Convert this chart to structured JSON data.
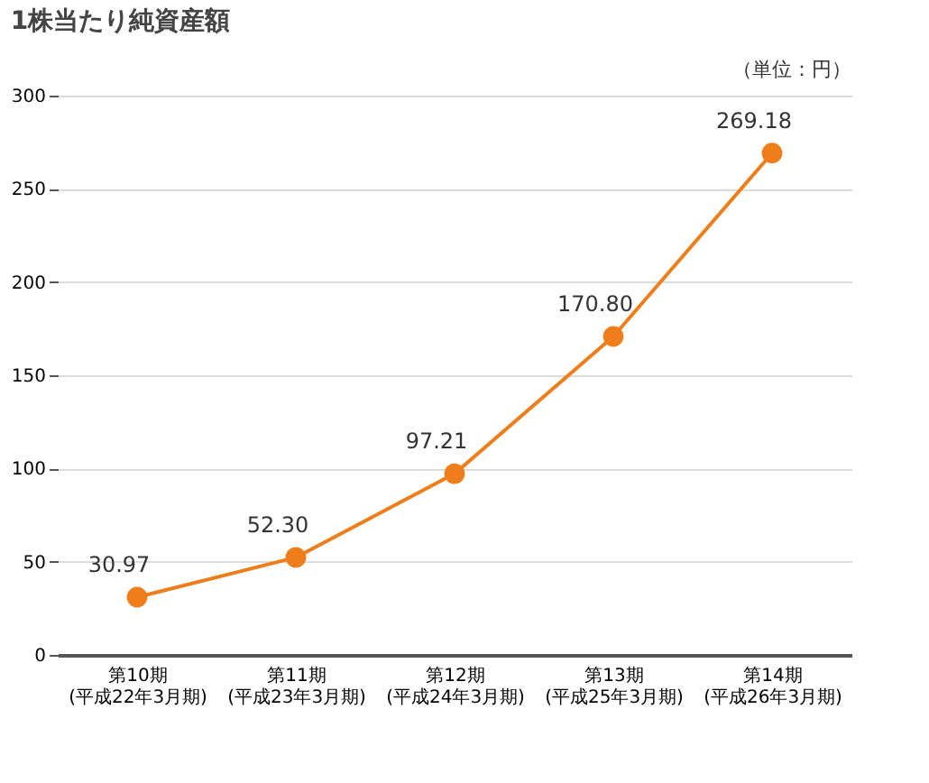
{
  "chart_data": {
    "type": "line",
    "title": "1株当たり純資産額",
    "categories": [
      "第10期\n(平成22年3月期)",
      "第11期\n(平成23年3月期)",
      "第12期\n(平成24年3月期)",
      "第13期\n(平成25年3月期)",
      "第14期\n(平成26年3月期)"
    ],
    "series": [
      {
        "color": "#ef7d1a",
        "values": [
          30.97,
          52.3,
          97.21,
          170.8,
          269.18
        ],
        "value_labels": [
          "30.97",
          "52.30",
          "97.21",
          "170.80",
          "269.18"
        ]
      }
    ],
    "marker": "circle",
    "ylim": [
      0,
      300
    ],
    "yticks": [
      0,
      50,
      100,
      150,
      200,
      250,
      300
    ],
    "grid": "y",
    "annotations": [
      "（単位：円）"
    ]
  }
}
